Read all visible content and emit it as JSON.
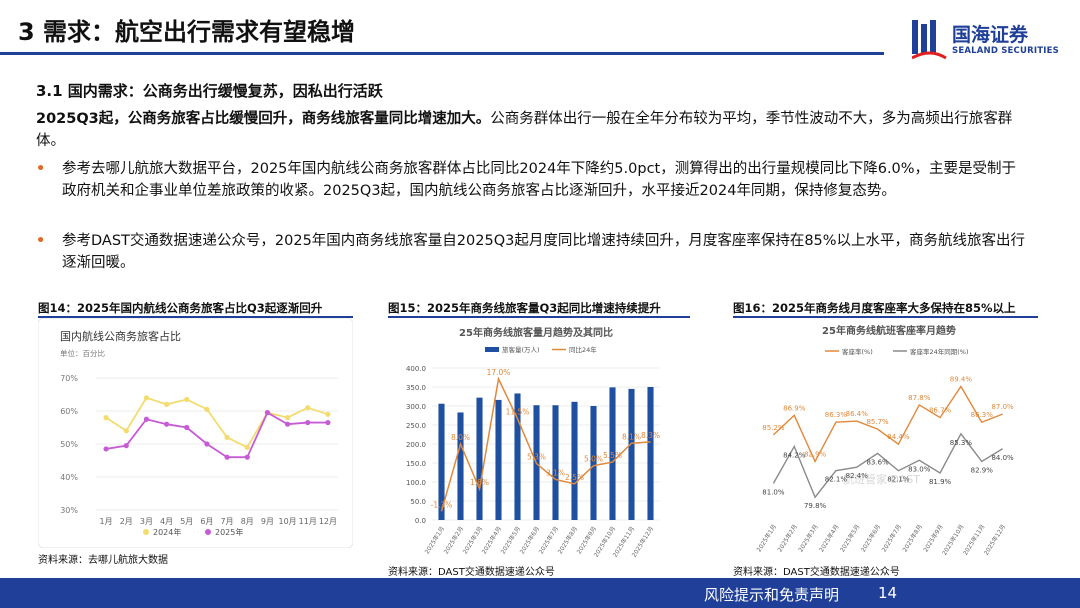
{
  "header": {
    "title": "3 需求：航空出行需求有望稳增",
    "logo_cn": "国海证券",
    "logo_en": "SEALAND SECURITIES"
  },
  "section": {
    "subtitle": "3.1 国内需求：公商务出行缓慢复苏，因私出行活跃",
    "paragraph_bold": "2025Q3起，公商务旅客占比缓慢回升，商务线旅客量同比增速加大。",
    "paragraph_rest": "公商务群体出行一般在全年分布较为平均，季节性波动不大，多为高频出行旅客群体。",
    "bullets": [
      "参考去哪儿航旅大数据平台，2025年国内航线公商务旅客群体占比同比2024年下降约5.0pct，测算得出的出行量规模同比下降6.0%，主要是受制于政府机关和企事业单位差旅政策的收紧。2025Q3起，国内航线公商务旅客占比逐渐回升，水平接近2024年同期，保持修复态势。",
      "参考DAST交通数据速递公众号，2025年国内商务线旅客量自2025Q3起月度同比增速持续回升，月度客座率保持在85%以上水平，商务航线旅客出行逐渐回暖。"
    ]
  },
  "figures": [
    {
      "title": "图14：2025年国内航线公商务旅客占比Q3起逐渐回升",
      "source": "资料来源：去哪儿航旅大数据"
    },
    {
      "title": "图15：2025年商务线旅客量Q3起同比增速持续提升",
      "source": "资料来源：DAST交通数据速递公众号"
    },
    {
      "title": "图16：2025年商务线月度客座率大多保持在85%以上",
      "source": "资料来源：DAST交通数据速递公众号"
    }
  ],
  "chart_data": [
    {
      "type": "line",
      "title": "国内航线公商务旅客占比",
      "unit_label": "单位：百分比",
      "x": [
        "1月",
        "2月",
        "3月",
        "4月",
        "5月",
        "6月",
        "7月",
        "8月",
        "9月",
        "10月",
        "11月",
        "12月"
      ],
      "yticks": [
        "30%",
        "40%",
        "50%",
        "60%",
        "70%"
      ],
      "ylim": [
        30,
        70
      ],
      "series": [
        {
          "name": "2024年",
          "color": "#f3dc6e",
          "values": [
            58,
            54,
            64,
            62,
            63.5,
            60.5,
            52,
            49,
            59.5,
            58,
            61,
            59
          ]
        },
        {
          "name": "2025年",
          "color": "#c75bd6",
          "values": [
            48.5,
            49.5,
            57.5,
            56,
            55,
            50,
            46,
            46,
            59.5,
            56,
            56.5,
            56.5
          ]
        }
      ],
      "legend": "bottom"
    },
    {
      "type": "bar+line",
      "title": "25年商务线旅客量月趋势及其同比",
      "x": [
        "2025年1月",
        "2025年2月",
        "2025年3月",
        "2025年4月",
        "2025年5月",
        "2025年6月",
        "2025年7月",
        "2025年8月",
        "2025年9月",
        "2025年10月",
        "2025年11月",
        "2025年12月"
      ],
      "yticks_left": [
        "0.0",
        "50.0",
        "100.0",
        "150.0",
        "200.0",
        "250.0",
        "300.0",
        "350.0",
        "400.0"
      ],
      "ylim_left": [
        0,
        400
      ],
      "ylim_right": [
        -2.5,
        18.5
      ],
      "series": [
        {
          "name": "旅客量(万人)",
          "color": "#1f4fa0",
          "kind": "bar",
          "values": [
            306,
            283,
            322,
            316,
            333,
            302,
            302,
            311,
            300,
            349,
            345,
            350
          ]
        },
        {
          "name": "同比24年",
          "color": "#e0893b",
          "kind": "line",
          "values": [
            -1.3,
            8.0,
            1.8,
            17.0,
            11.5,
            5.3,
            3.1,
            2.5,
            5.0,
            5.5,
            8.1,
            8.3
          ],
          "labels": [
            "-1.3%",
            "8.0%",
            "1.8%",
            "17.0%",
            "11.5%",
            "5.3%",
            "3.1%",
            "2.5%",
            "5.0%",
            "5.5%",
            "8.1%",
            "8.3%"
          ]
        }
      ],
      "legend": "top"
    },
    {
      "type": "line",
      "title": "25年商务线航班客座率月趋势",
      "x": [
        "2025年1月",
        "2025年2月",
        "2025年3月",
        "2025年4月",
        "2025年5月",
        "2025年6月",
        "2025年7月",
        "2025年8月",
        "2025年9月",
        "2025年10月",
        "2025年11月",
        "2025年12月"
      ],
      "ylim": [
        78,
        91
      ],
      "series": [
        {
          "name": "客座率(%)",
          "color": "#e0893b",
          "values": [
            85.2,
            86.9,
            82.9,
            86.3,
            86.4,
            85.7,
            84.4,
            87.8,
            86.7,
            89.4,
            86.3,
            87.0
          ],
          "labels": [
            "85.2%",
            "86.9%",
            "82.9%",
            "86.3%",
            "86.4%",
            "85.7%",
            "84.4%",
            "87.8%",
            "86.7%",
            "89.4%",
            "86.3%",
            "87.0%"
          ]
        },
        {
          "name": "客座率24年同期(%)",
          "color": "#8a8a8a",
          "values": [
            81.0,
            84.2,
            79.8,
            82.1,
            82.4,
            83.6,
            82.1,
            83.0,
            81.9,
            85.3,
            82.9,
            84.0
          ],
          "labels": [
            "81.0%",
            "84.2%",
            "79.8%",
            "82.1%",
            "82.4%",
            "83.6%",
            "82.1%",
            "83.0%",
            "81.9%",
            "85.3%",
            "82.9%",
            "84.0%"
          ]
        }
      ],
      "legend": "top",
      "watermark": "航班管家 DAST"
    }
  ],
  "footer": {
    "text": "风险提示和免责声明",
    "page": "14"
  }
}
